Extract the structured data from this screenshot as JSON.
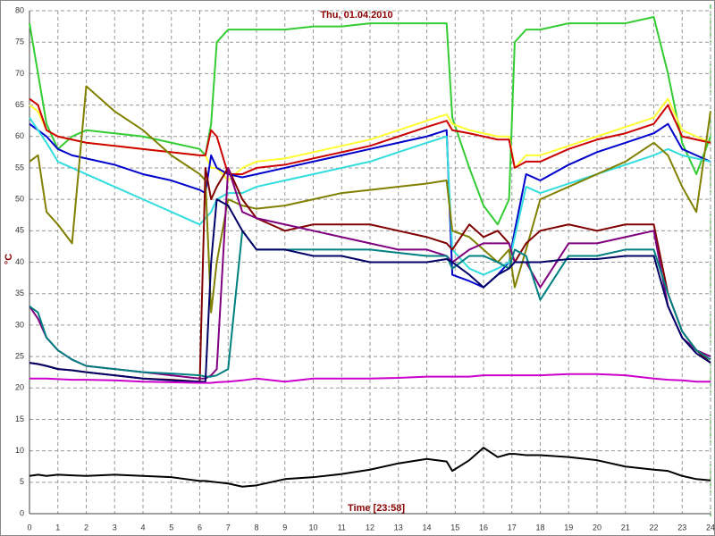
{
  "chart_data": {
    "type": "line",
    "title": "Thu, 01.04.2010",
    "x_label": "Time [23:58]",
    "y_label": "°C",
    "x": [
      0,
      0.3,
      0.6,
      1,
      1.5,
      2,
      3,
      4,
      5,
      6,
      6.2,
      6.4,
      6.6,
      7,
      7.5,
      8,
      9,
      10,
      11,
      12,
      13,
      14,
      14.7,
      14.9,
      15.5,
      16,
      16.5,
      16.9,
      17.1,
      17.5,
      18,
      19,
      20,
      21,
      22,
      22.5,
      23,
      23.5,
      24
    ],
    "series": [
      {
        "color": "#33cc33",
        "values": [
          78,
          70,
          62,
          58,
          60,
          61,
          60.5,
          60,
          59,
          58,
          57,
          62,
          75,
          77,
          77,
          77,
          77,
          77.5,
          77.5,
          78,
          78,
          78,
          78,
          63,
          55,
          49,
          46,
          50,
          75,
          77,
          77,
          78,
          78,
          78,
          79,
          70,
          59,
          54,
          60
        ]
      },
      {
        "color": "#ffff33",
        "values": [
          65,
          64,
          61,
          60,
          59.5,
          59,
          58.5,
          58,
          57.5,
          57,
          57,
          55,
          55,
          53,
          55,
          56,
          56.5,
          57.5,
          58.5,
          59.5,
          61,
          62.5,
          63.5,
          62,
          61,
          60.5,
          60,
          60,
          55,
          57,
          57,
          58.5,
          60,
          61.5,
          63,
          66,
          61,
          60,
          59
        ]
      },
      {
        "color": "#cc0000",
        "values": [
          66,
          65,
          61,
          60,
          59.5,
          59,
          58.5,
          58,
          57.5,
          57,
          57,
          61,
          60,
          54,
          54,
          55,
          55.5,
          56.5,
          57.5,
          58.5,
          60,
          61.5,
          62.5,
          61,
          60.5,
          60,
          59.5,
          59.5,
          55,
          56,
          56,
          58,
          59.5,
          60.5,
          62,
          65,
          60,
          59.5,
          59
        ]
      },
      {
        "color": "#0000cc",
        "values": [
          62,
          61,
          60,
          58,
          57,
          56.5,
          55.5,
          54,
          53,
          51.5,
          51,
          57,
          55,
          54,
          53.5,
          54,
          55,
          56,
          57,
          58,
          59,
          60,
          61,
          38,
          37,
          36,
          38,
          40,
          45,
          54,
          53,
          55.5,
          57.5,
          59,
          60.5,
          62,
          58,
          57,
          56
        ]
      },
      {
        "color": "#33dddd",
        "values": [
          63,
          61,
          59,
          56,
          55,
          54,
          52,
          50,
          48,
          46,
          47,
          48,
          50,
          51,
          51,
          52,
          53,
          54,
          55,
          56,
          57.5,
          59,
          60,
          42,
          39,
          38,
          39,
          40,
          44,
          52,
          51,
          52.5,
          54,
          55.5,
          57,
          58,
          57,
          56.5,
          56
        ]
      },
      {
        "color": "#808000",
        "values": [
          56,
          57,
          48,
          46,
          43,
          68,
          64,
          61,
          57,
          54,
          53,
          32,
          40,
          50,
          49,
          48.5,
          49,
          50,
          51,
          51.5,
          52,
          52.5,
          53,
          45,
          44,
          42,
          40,
          42,
          36,
          42,
          50,
          52,
          54,
          56,
          59,
          57,
          52,
          48,
          64
        ]
      },
      {
        "color": "#800000",
        "values": [
          24,
          23.8,
          23.5,
          23,
          22.8,
          22.5,
          22,
          21.5,
          21.3,
          21,
          55,
          50,
          52,
          55,
          50,
          47,
          45,
          46,
          46,
          46,
          45,
          44,
          43,
          42,
          46,
          44,
          45,
          43,
          40,
          43,
          45,
          46,
          45,
          46,
          46,
          35,
          29,
          26,
          24
        ]
      },
      {
        "color": "#800080",
        "values": [
          33,
          31,
          28,
          26,
          24.5,
          23.5,
          23,
          22.5,
          22,
          21.5,
          21.5,
          22,
          23,
          55,
          48,
          47,
          46,
          45,
          44,
          43,
          42,
          42,
          41,
          40,
          42,
          43,
          43,
          43,
          40,
          40,
          36,
          43,
          43,
          44,
          45,
          33,
          28,
          26,
          25
        ]
      },
      {
        "color": "#008080",
        "values": [
          33,
          32,
          28,
          26,
          24.5,
          23.5,
          23,
          22.5,
          22.3,
          22,
          21.8,
          21.8,
          22,
          23,
          45,
          42,
          42,
          42,
          42,
          42,
          41.5,
          41,
          41,
          39,
          41,
          41,
          40,
          39,
          42,
          41,
          34,
          41,
          41,
          42,
          42,
          35,
          29,
          26,
          24.5
        ]
      },
      {
        "color": "#000066",
        "values": [
          24,
          23.8,
          23.5,
          23,
          22.8,
          22.5,
          22,
          21.5,
          21.2,
          21,
          21,
          40,
          50,
          49,
          45,
          42,
          42,
          41,
          41,
          40,
          40,
          40,
          40.5,
          40,
          38,
          36,
          38,
          39,
          40,
          40,
          40,
          40.5,
          40.5,
          41,
          41,
          33,
          28,
          25.5,
          24
        ]
      },
      {
        "color": "#cc00cc",
        "values": [
          21.5,
          21.5,
          21.5,
          21.4,
          21.3,
          21.3,
          21.2,
          21,
          20.9,
          20.8,
          20.8,
          20.8,
          20.9,
          21,
          21.2,
          21.5,
          21,
          21.5,
          21.5,
          21.5,
          21.6,
          21.8,
          21.8,
          21.8,
          21.8,
          22,
          22,
          22,
          22,
          22,
          22,
          22.2,
          22.2,
          22,
          21.5,
          21.3,
          21.2,
          21,
          21
        ]
      },
      {
        "color": "#000000",
        "values": [
          6,
          6.2,
          6,
          6.2,
          6.1,
          6,
          6.2,
          6,
          5.8,
          5.2,
          5.2,
          5.1,
          5,
          4.8,
          4.3,
          4.5,
          5.5,
          5.8,
          6.3,
          7,
          8,
          8.7,
          8.3,
          6.8,
          8.5,
          10.5,
          9,
          9.5,
          9.5,
          9.3,
          9.3,
          9,
          8.5,
          7.5,
          7,
          6.8,
          6,
          5.5,
          5.3
        ]
      }
    ],
    "xlim": [
      0,
      24
    ],
    "ylim": [
      0,
      80
    ],
    "xticks": [
      0,
      1,
      2,
      3,
      4,
      5,
      6,
      7,
      8,
      9,
      10,
      11,
      12,
      13,
      14,
      15,
      16,
      17,
      18,
      19,
      20,
      21,
      22,
      23,
      24
    ],
    "yticks": [
      0,
      5,
      10,
      15,
      20,
      25,
      30,
      35,
      40,
      45,
      50,
      55,
      60,
      65,
      70,
      75,
      80
    ],
    "grid": true
  }
}
